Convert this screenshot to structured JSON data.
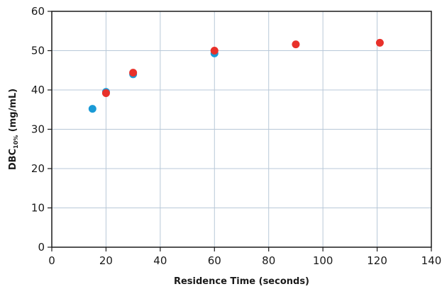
{
  "chart_data": {
    "type": "scatter",
    "xlabel": "Residence Time (seconds)",
    "ylabel_main": "DBC",
    "ylabel_sub": "10%",
    "ylabel_unit": " (mg/mL)",
    "xlim": [
      0,
      140
    ],
    "ylim": [
      0,
      60
    ],
    "xticks": [
      0,
      20,
      40,
      60,
      80,
      100,
      120,
      140
    ],
    "yticks": [
      0,
      10,
      20,
      30,
      40,
      50,
      60
    ],
    "grid": true,
    "series": [
      {
        "color": "#1a9ad6",
        "points": [
          {
            "x": 15,
            "y": 35.2
          },
          {
            "x": 20,
            "y": 39.5
          },
          {
            "x": 30,
            "y": 44.0
          },
          {
            "x": 60,
            "y": 49.3
          }
        ]
      },
      {
        "color": "#e8312a",
        "points": [
          {
            "x": 20,
            "y": 39.2
          },
          {
            "x": 30,
            "y": 44.4
          },
          {
            "x": 60,
            "y": 50.0
          },
          {
            "x": 90,
            "y": 51.6
          },
          {
            "x": 121,
            "y": 52.0
          }
        ]
      }
    ]
  }
}
